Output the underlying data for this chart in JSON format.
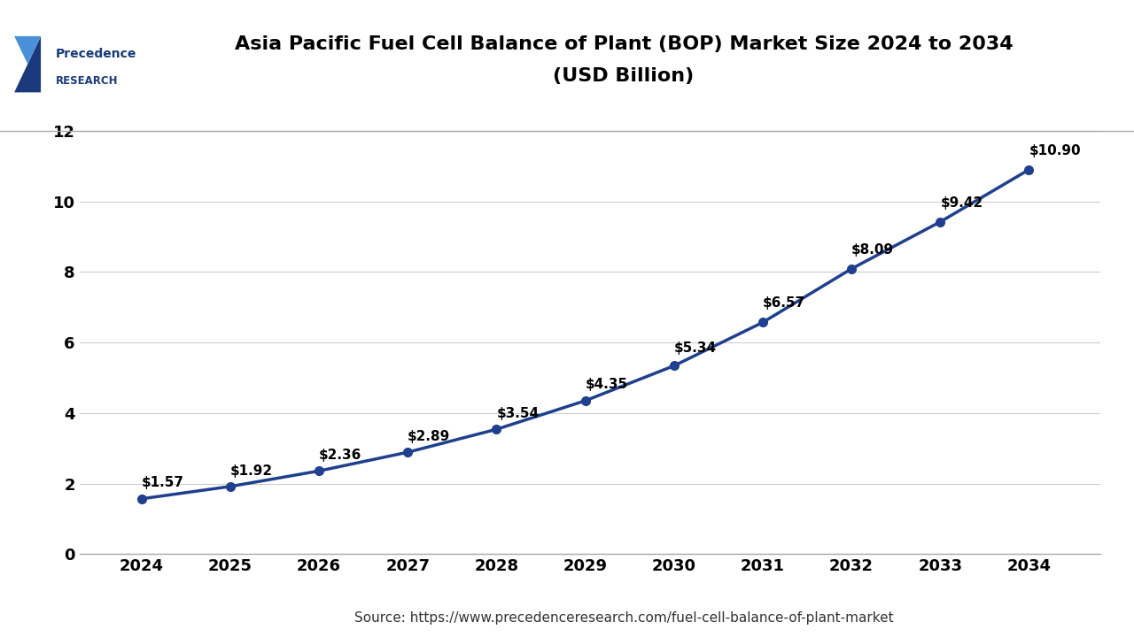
{
  "title_line1": "Asia Pacific Fuel Cell Balance of Plant (BOP) Market Size 2024 to 2034",
  "title_line2": "(USD Billion)",
  "years": [
    2024,
    2025,
    2026,
    2027,
    2028,
    2029,
    2030,
    2031,
    2032,
    2033,
    2034
  ],
  "values": [
    1.57,
    1.92,
    2.36,
    2.89,
    3.54,
    4.35,
    5.34,
    6.57,
    8.09,
    9.42,
    10.9
  ],
  "labels": [
    "$1.57",
    "$1.92",
    "$2.36",
    "$2.89",
    "$3.54",
    "$4.35",
    "$5.34",
    "$6.57",
    "$8.09",
    "$9.42",
    "$10.90"
  ],
  "line_color": "#1F3F8F",
  "marker_color": "#1F3F8F",
  "bg_color": "#FFFFFF",
  "plot_bg_color": "#FFFFFF",
  "grid_color": "#CCCCCC",
  "title_color": "#000000",
  "tick_color": "#000000",
  "ylim": [
    0,
    13
  ],
  "yticks": [
    0,
    2,
    4,
    6,
    8,
    10,
    12
  ],
  "source_text": "Source: https://www.precedenceresearch.com/fuel-cell-balance-of-plant-market",
  "title_fontsize": 16,
  "label_fontsize": 11,
  "tick_fontsize": 13,
  "source_fontsize": 11,
  "line_width": 2.5,
  "marker_size": 7,
  "logo_text1": "Precedence",
  "logo_text2": "RESEARCH",
  "logo_color": "#1a3a7c",
  "logo_color2": "#4a90d9"
}
